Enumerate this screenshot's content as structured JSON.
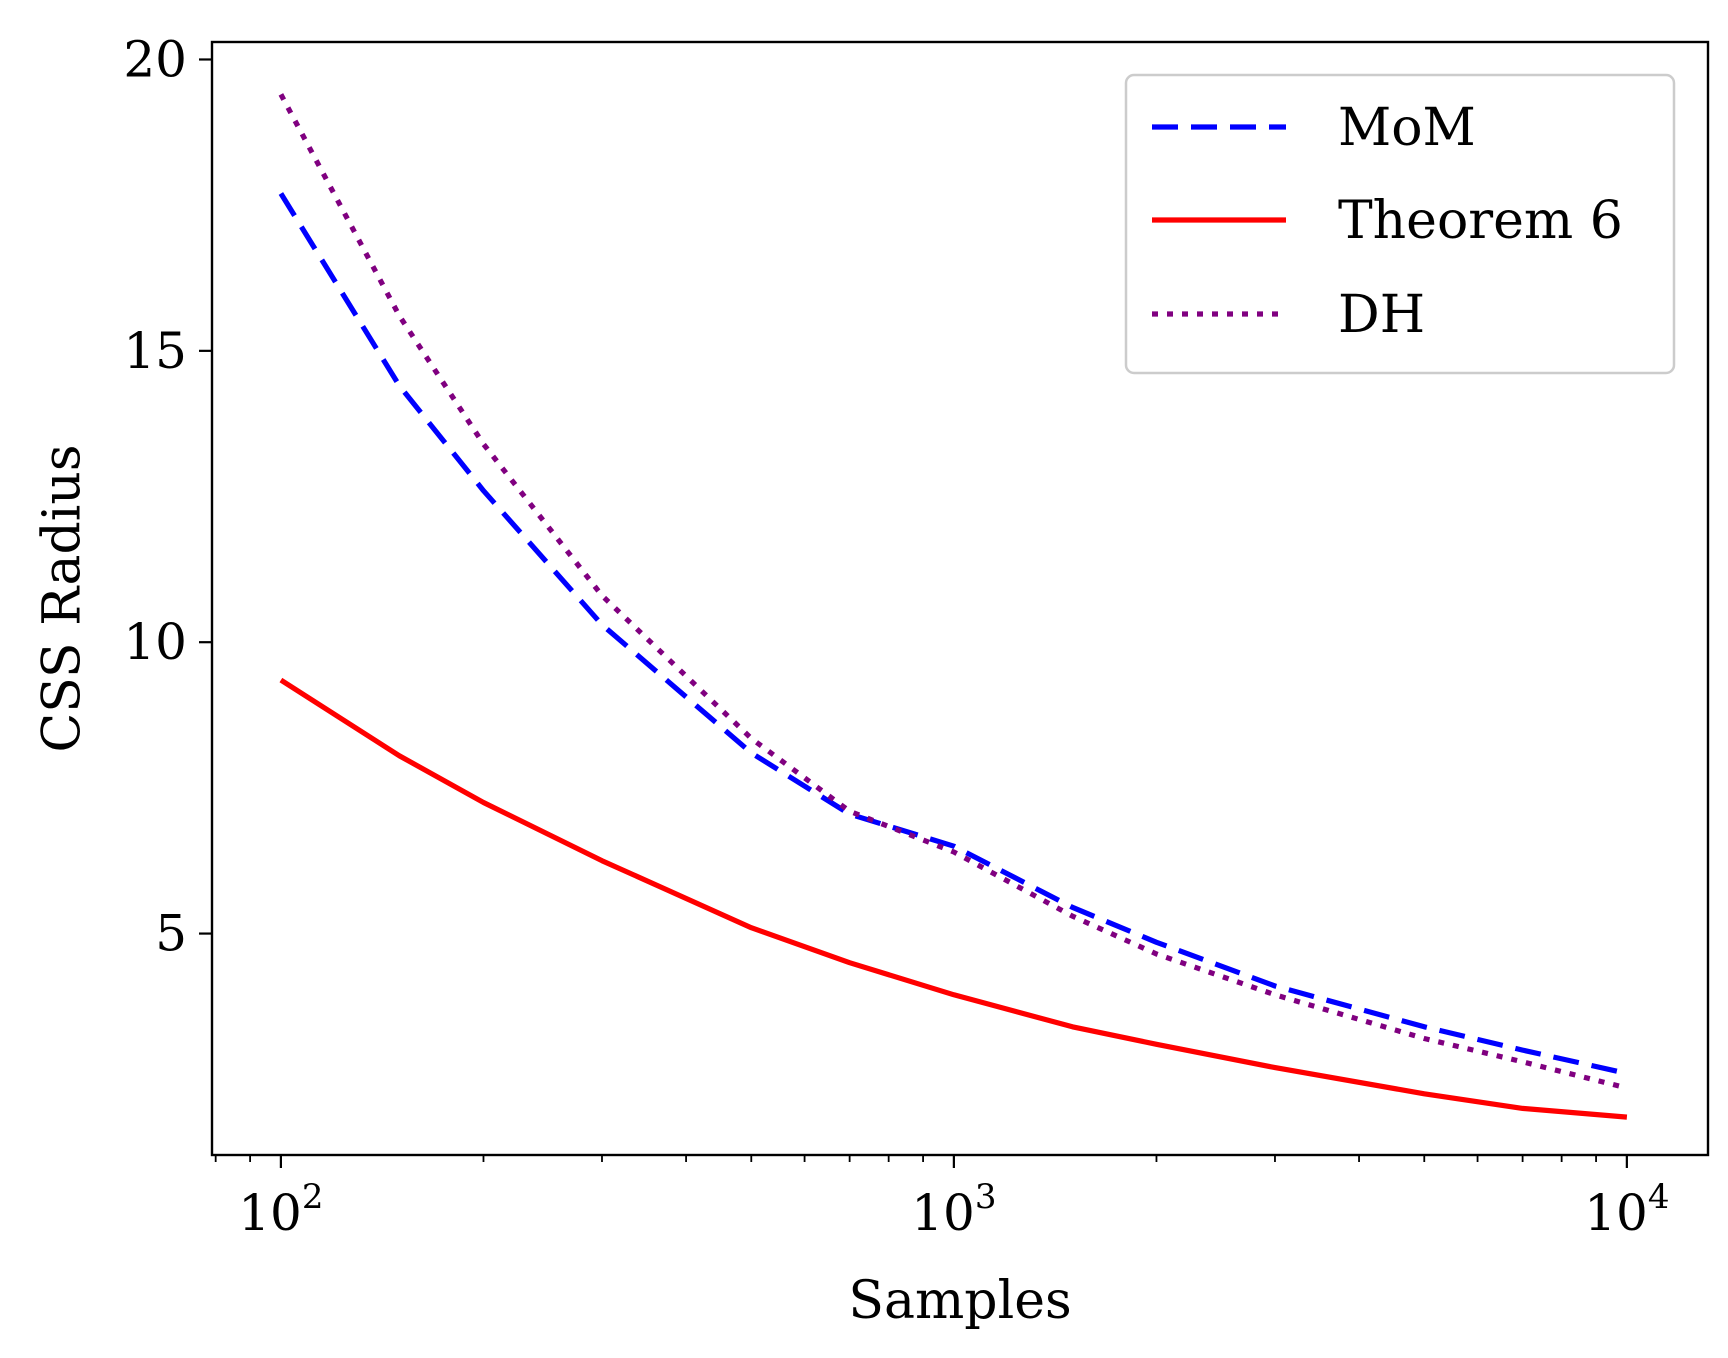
{
  "chart_data": {
    "type": "line",
    "xlabel": "Samples",
    "ylabel": "CSS Radius",
    "xscale": "log",
    "xlim": [
      79,
      13200
    ],
    "ylim": [
      1.2,
      20.3
    ],
    "grid": false,
    "legend_position": "top-right",
    "x_ticks": [
      {
        "value": 100,
        "base": "10",
        "exp": "2"
      },
      {
        "value": 1000,
        "base": "10",
        "exp": "3"
      },
      {
        "value": 10000,
        "base": "10",
        "exp": "4"
      }
    ],
    "y_ticks": [
      {
        "value": 5,
        "label": "5"
      },
      {
        "value": 10,
        "label": "10"
      },
      {
        "value": 15,
        "label": "15"
      },
      {
        "value": 20,
        "label": "20"
      }
    ],
    "series": [
      {
        "name": "MoM",
        "color": "#0000ff",
        "style": "dashed",
        "x": [
          100,
          150,
          200,
          300,
          500,
          700,
          1000,
          1500,
          2000,
          3000,
          5000,
          7000,
          10000
        ],
        "y": [
          17.7,
          14.4,
          12.6,
          10.3,
          8.1,
          7.05,
          6.5,
          5.45,
          4.85,
          4.1,
          3.4,
          3.0,
          2.6
        ]
      },
      {
        "name": "Theorem 6",
        "color": "#ff0000",
        "style": "solid",
        "x": [
          100,
          150,
          200,
          300,
          500,
          700,
          1000,
          1500,
          2000,
          3000,
          5000,
          7000,
          10000
        ],
        "y": [
          9.35,
          8.05,
          7.25,
          6.25,
          5.1,
          4.5,
          3.95,
          3.4,
          3.1,
          2.7,
          2.25,
          2.0,
          1.85
        ]
      },
      {
        "name": "DH",
        "color": "#800080",
        "style": "dotted",
        "x": [
          100,
          150,
          200,
          300,
          500,
          700,
          1000,
          1500,
          2000,
          3000,
          5000,
          7000,
          10000
        ],
        "y": [
          19.4,
          15.6,
          13.4,
          10.8,
          8.35,
          7.1,
          6.4,
          5.3,
          4.65,
          3.95,
          3.2,
          2.8,
          2.35
        ]
      }
    ]
  }
}
